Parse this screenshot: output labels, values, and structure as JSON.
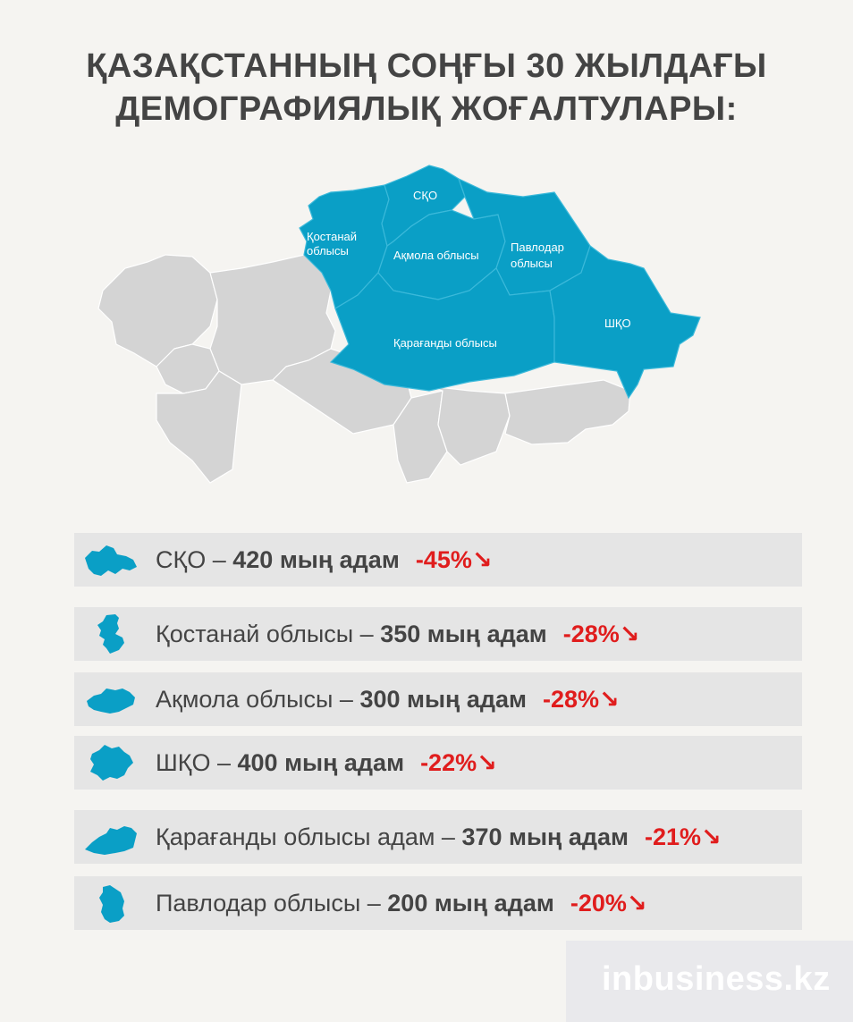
{
  "title": {
    "line1": "ҚАЗАҚСТАННЫҢ СОҢҒЫ 30 ЖЫЛДАҒЫ",
    "line2": "ДЕМОГРАФИЯЛЫҚ ЖОҒАЛТУЛАРЫ:"
  },
  "map": {
    "labels": {
      "sko": "СҚО",
      "kostanay_1": "Қостанай",
      "kostanay_2": "облысы",
      "akmola": "Ақмола облысы",
      "pavlodar_1": "Павлодар",
      "pavlodar_2": "облысы",
      "shko": "ШҚО",
      "karaganda": "Қарағанды облысы"
    },
    "highlight_color": "#0a9fc6",
    "base_color": "#d4d4d4"
  },
  "rows": [
    {
      "region": "СҚО",
      "sep": " – ",
      "value": "420 мың адам",
      "change": "-45%↘",
      "icon": "sko-region-icon"
    },
    {
      "region": "Қостанай облысы",
      "sep": " – ",
      "value": "350 мың  адам",
      "change": "-28%↘",
      "icon": "kostanay-region-icon"
    },
    {
      "region": "Ақмола облысы",
      "sep": " – ",
      "value": "300 мың адам",
      "change": "-28%↘",
      "icon": "akmola-region-icon"
    },
    {
      "region": "ШҚО",
      "sep": " – ",
      "value": "400 мың адам",
      "change": "-22%↘",
      "icon": "shko-region-icon"
    },
    {
      "region": "Қарағанды облысы адам",
      "sep": " – ",
      "value": "370 мың адам",
      "change": "-21%↘",
      "icon": "karaganda-region-icon"
    },
    {
      "region": "Павлодар облысы",
      "sep": " – ",
      "value": "200 мың адам",
      "change": "-20%↘",
      "icon": "pavlodar-region-icon"
    }
  ],
  "watermark": "inbusiness.kz",
  "colors": {
    "accent": "#0a9fc6",
    "negative": "#e01d1d",
    "text": "#444444",
    "row_bg": "#e5e5e5"
  }
}
